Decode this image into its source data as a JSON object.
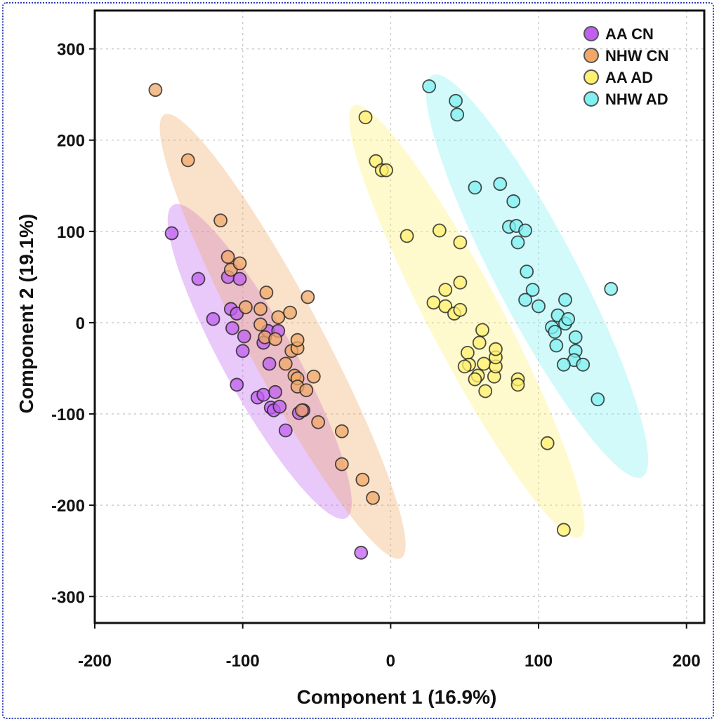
{
  "chart_data": {
    "type": "scatter",
    "xlabel": "Component 1 (16.9%)",
    "ylabel": "Component 2 (19.1%)",
    "xlim": [
      -200,
      212
    ],
    "ylim": [
      -329,
      342
    ],
    "xticks": [
      -200,
      -100,
      0,
      100,
      200
    ],
    "yticks": [
      300,
      200,
      100,
      0,
      -100,
      -200,
      -300
    ],
    "grid": true,
    "legend_position": "top-right",
    "series": [
      {
        "name": "AA CN",
        "color": "#c060f0",
        "ellipse": {
          "major_end_a": [
            -147,
            129
          ],
          "major_end_b": [
            -30,
            -214
          ],
          "minor_to_major_ratio": 0.2
        },
        "points": [
          [
            -148,
            98
          ],
          [
            -130,
            48
          ],
          [
            -120,
            4
          ],
          [
            -110,
            50
          ],
          [
            -102,
            48
          ],
          [
            -108,
            15
          ],
          [
            -104,
            10
          ],
          [
            -107,
            -6
          ],
          [
            -99,
            -15
          ],
          [
            -100,
            -31
          ],
          [
            -104,
            -68
          ],
          [
            -90,
            -82
          ],
          [
            -86,
            -79
          ],
          [
            -86,
            -22
          ],
          [
            -82,
            -45
          ],
          [
            -83,
            -9
          ],
          [
            -76,
            -9
          ],
          [
            -78,
            -76
          ],
          [
            -81,
            -93
          ],
          [
            -79,
            -96
          ],
          [
            -75,
            -92
          ],
          [
            -71,
            -118
          ],
          [
            -62,
            -99
          ],
          [
            -59,
            -96
          ],
          [
            -20,
            -252
          ]
        ]
      },
      {
        "name": "NHW CN",
        "color": "#f0a868",
        "ellipse": {
          "major_end_a": [
            -153,
            228
          ],
          "major_end_b": [
            7,
            -258
          ],
          "minor_to_major_ratio": 0.15
        },
        "points": [
          [
            -159,
            255
          ],
          [
            -137,
            178
          ],
          [
            -115,
            112
          ],
          [
            -110,
            72
          ],
          [
            -108,
            58
          ],
          [
            -102,
            65
          ],
          [
            -98,
            17
          ],
          [
            -84,
            33
          ],
          [
            -88,
            15
          ],
          [
            -88,
            -2
          ],
          [
            -85,
            -16
          ],
          [
            -78,
            -18
          ],
          [
            -76,
            6
          ],
          [
            -68,
            11
          ],
          [
            -71,
            -45
          ],
          [
            -67,
            -31
          ],
          [
            -63,
            -28
          ],
          [
            -63,
            -19
          ],
          [
            -65,
            -58
          ],
          [
            -63,
            -61
          ],
          [
            -63,
            -70
          ],
          [
            -57,
            -74
          ],
          [
            -52,
            -59
          ],
          [
            -56,
            28
          ],
          [
            -60,
            -96
          ],
          [
            -49,
            -109
          ],
          [
            -33,
            -119
          ],
          [
            -33,
            -155
          ],
          [
            -19,
            -172
          ],
          [
            -12,
            -192
          ]
        ]
      },
      {
        "name": "AA AD",
        "color": "#fff070",
        "ellipse": {
          "major_end_a": [
            -25,
            238
          ],
          "major_end_b": [
            128,
            -235
          ],
          "minor_to_major_ratio": 0.15
        },
        "points": [
          [
            -17,
            225
          ],
          [
            -10,
            177
          ],
          [
            -6,
            167
          ],
          [
            -3,
            167
          ],
          [
            11,
            95
          ],
          [
            33,
            101
          ],
          [
            47,
            88
          ],
          [
            37,
            36
          ],
          [
            47,
            44
          ],
          [
            29,
            22
          ],
          [
            37,
            18
          ],
          [
            43,
            10
          ],
          [
            47,
            14
          ],
          [
            62,
            -8
          ],
          [
            60,
            -22
          ],
          [
            52,
            -33
          ],
          [
            53,
            -46
          ],
          [
            50,
            -48
          ],
          [
            59,
            -58
          ],
          [
            63,
            -45
          ],
          [
            64,
            -75
          ],
          [
            70,
            -59
          ],
          [
            71,
            -48
          ],
          [
            71,
            -38
          ],
          [
            71,
            -29
          ],
          [
            86,
            -62
          ],
          [
            86,
            -68
          ],
          [
            57,
            -62
          ],
          [
            106,
            -132
          ],
          [
            117,
            -227
          ]
        ]
      },
      {
        "name": "NHW AD",
        "color": "#80f0f0",
        "ellipse": {
          "major_end_a": [
            28,
            271
          ],
          "major_end_b": [
            170,
            -169
          ],
          "minor_to_major_ratio": 0.18
        },
        "points": [
          [
            26,
            259
          ],
          [
            44,
            243
          ],
          [
            45,
            228
          ],
          [
            57,
            148
          ],
          [
            74,
            152
          ],
          [
            83,
            133
          ],
          [
            80,
            105
          ],
          [
            85,
            106
          ],
          [
            91,
            101
          ],
          [
            86,
            88
          ],
          [
            92,
            56
          ],
          [
            96,
            36
          ],
          [
            91,
            25
          ],
          [
            100,
            18
          ],
          [
            118,
            25
          ],
          [
            113,
            8
          ],
          [
            109,
            -5
          ],
          [
            111,
            -10
          ],
          [
            118,
            -1
          ],
          [
            120,
            4
          ],
          [
            112,
            -25
          ],
          [
            125,
            -16
          ],
          [
            125,
            -31
          ],
          [
            124,
            -41
          ],
          [
            117,
            -46
          ],
          [
            130,
            -46
          ],
          [
            140,
            -84
          ],
          [
            149,
            37
          ]
        ]
      }
    ]
  }
}
